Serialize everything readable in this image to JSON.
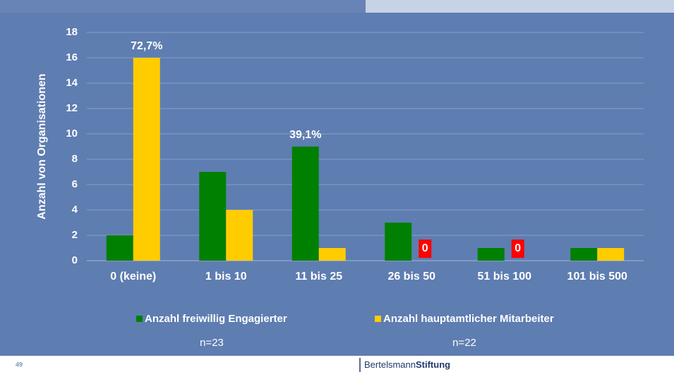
{
  "chart_data": {
    "type": "bar",
    "y_label": "Anzahl von Organisationen",
    "categories": [
      "0 (keine)",
      "1 bis 10",
      "11 bis 25",
      "26 bis 50",
      "51 bis 100",
      "101 bis 500"
    ],
    "series": [
      {
        "name": "Anzahl freiwillig Engagierter",
        "color": "#008000",
        "values": [
          2,
          7,
          9,
          3,
          1,
          1
        ],
        "n": "n=23"
      },
      {
        "name": "Anzahl hauptamtlicher Mitarbeiter",
        "color": "#ffcc00",
        "values": [
          16,
          4,
          1,
          0,
          0,
          1
        ],
        "n": "n=22"
      }
    ],
    "annotations": [
      {
        "text": "72,7%",
        "series": 1,
        "index": 0
      },
      {
        "text": "39,1%",
        "series": 0,
        "index": 2
      }
    ],
    "ylim": [
      0,
      18
    ],
    "yticks": [
      0,
      2,
      4,
      6,
      8,
      10,
      12,
      14,
      16,
      18
    ],
    "grid": true,
    "zero_label_color": "#ff0000"
  },
  "footer": {
    "page": "49",
    "brand": [
      "Bertelsmann",
      "Stiftung"
    ]
  }
}
